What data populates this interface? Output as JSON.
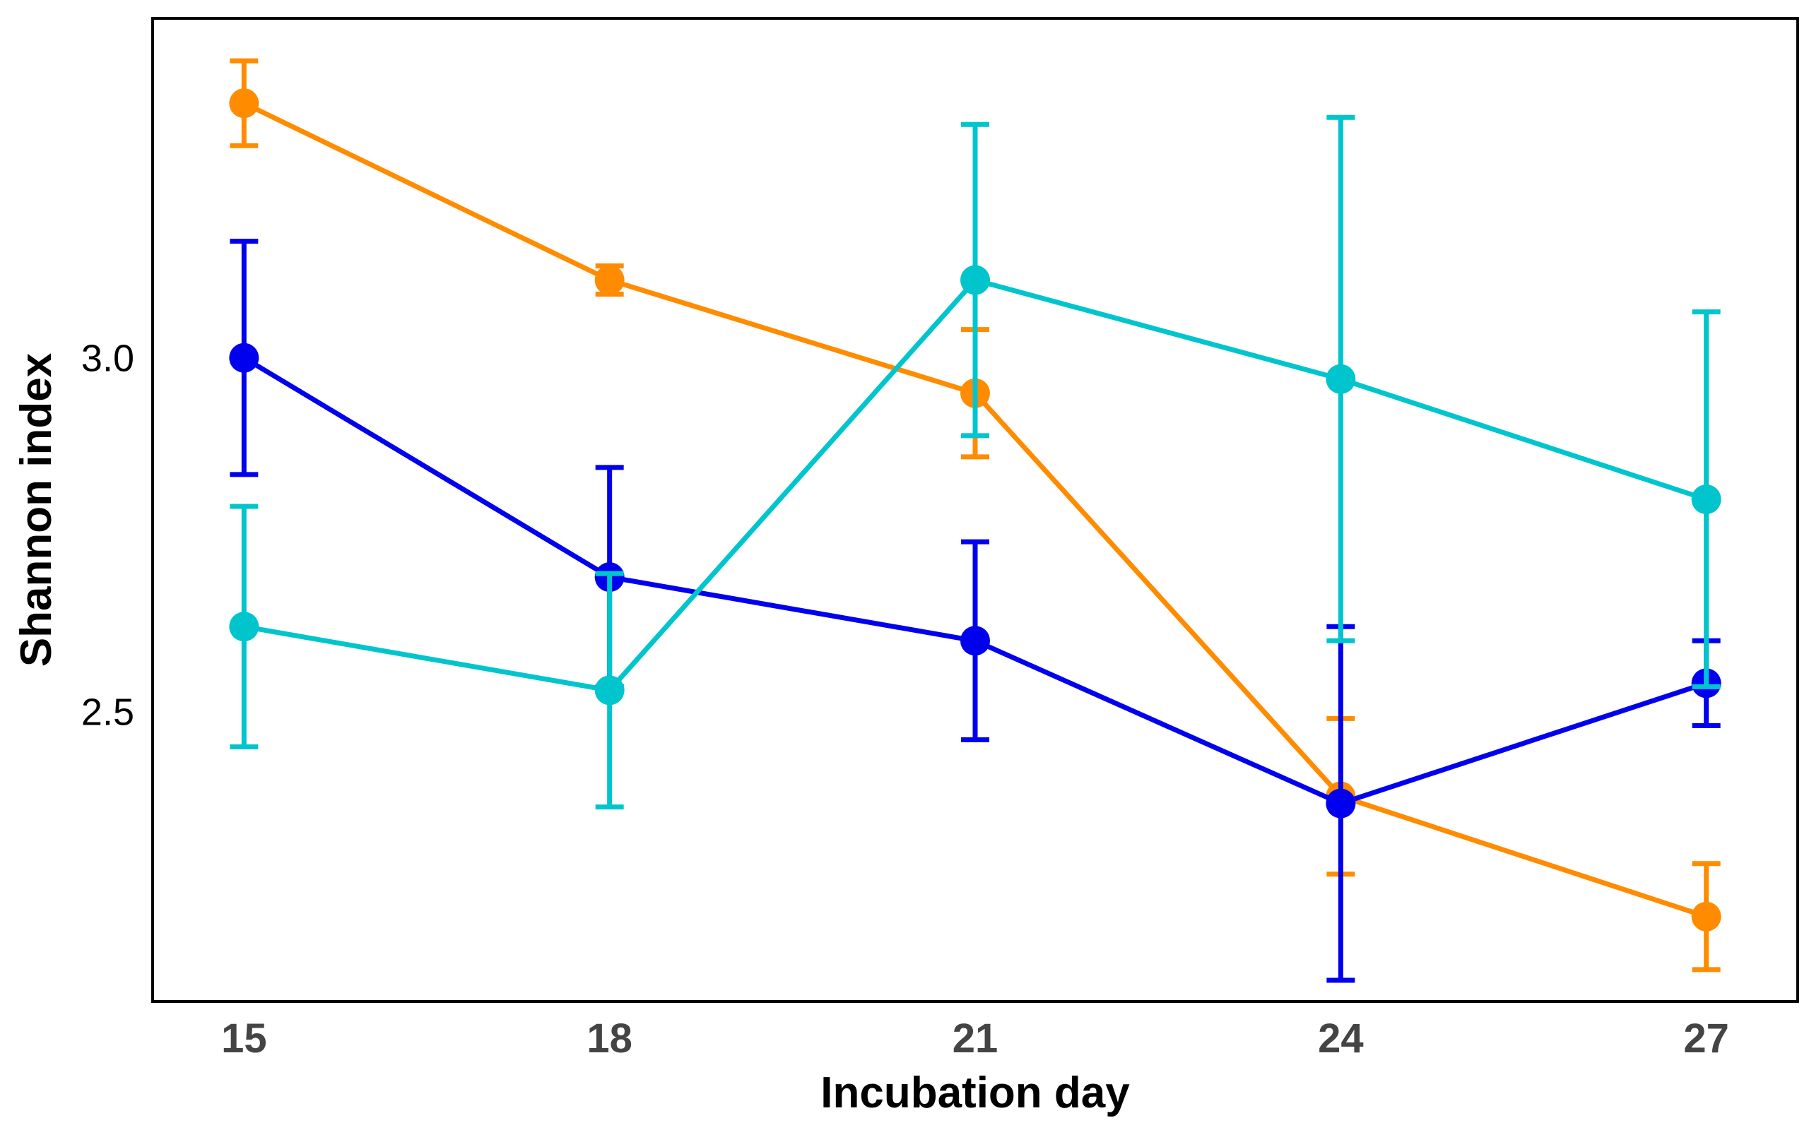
{
  "chart_data": {
    "type": "line",
    "title": "",
    "xlabel": "Incubation day",
    "ylabel": "Shannon index",
    "x": [
      15,
      18,
      21,
      24,
      27
    ],
    "x_tick_labels": [
      "15",
      "18",
      "21",
      "24",
      "27"
    ],
    "y_ticks": [
      2.5,
      3.0
    ],
    "y_tick_labels": [
      "2.5",
      "3.0"
    ],
    "xlim": [
      14.25,
      27.75
    ],
    "ylim": [
      2.09,
      3.48
    ],
    "grid": false,
    "legend": "none",
    "series": [
      {
        "color": "#ff8c00",
        "values": [
          3.36,
          3.11,
          2.95,
          2.38,
          2.21
        ],
        "error": [
          0.06,
          0.02,
          0.09,
          0.11,
          0.075
        ]
      },
      {
        "color": "#0000ee",
        "values": [
          3.0,
          2.69,
          2.6,
          2.37,
          2.54
        ],
        "error": [
          0.165,
          0.155,
          0.14,
          0.25,
          0.06
        ]
      },
      {
        "color": "#00c5cd",
        "values": [
          2.62,
          2.53,
          3.11,
          2.97,
          2.8
        ],
        "error": [
          0.17,
          0.165,
          0.22,
          0.37,
          0.265
        ]
      }
    ]
  }
}
